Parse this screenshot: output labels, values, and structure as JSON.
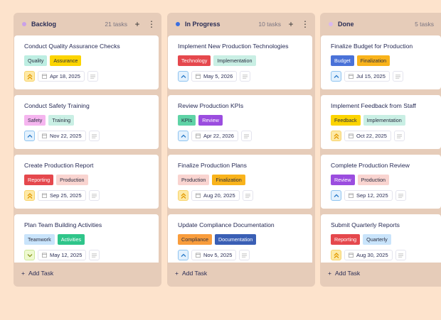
{
  "priorities": {
    "high": {
      "icon": "double-chevron-up-icon",
      "glyph": "⌃",
      "bg": "#fde9a6",
      "border": "#f8d36a",
      "color": "#e39a00"
    },
    "medium": {
      "icon": "chevron-up-icon",
      "glyph": "⌃",
      "bg": "#e3f1fd",
      "border": "#8fc4f0",
      "color": "#2a7ac8"
    },
    "low": {
      "icon": "chevron-down-icon",
      "glyph": "⌄",
      "bg": "#eef9cf",
      "border": "#cde89a",
      "color": "#8a9a20"
    }
  },
  "add_task_label": "Add Task",
  "columns": [
    {
      "title": "Backlog",
      "count": "21 tasks",
      "dot": "#c9a0e8",
      "cards": [
        {
          "title": "Conduct Quality Assurance Checks",
          "tags": [
            {
              "label": "Quality",
              "bg": "#bdeee2",
              "fg": "#2a2d40"
            },
            {
              "label": "Assurance",
              "bg": "#fcd400",
              "fg": "#2a2d40"
            }
          ],
          "priority": "high",
          "date": "Apr 18, 2025"
        },
        {
          "title": "Conduct Safety Training",
          "tags": [
            {
              "label": "Safety",
              "bg": "#f5b5ef",
              "fg": "#2a2d40"
            },
            {
              "label": "Training",
              "bg": "#c9efe4",
              "fg": "#2a2d40"
            }
          ],
          "priority": "medium",
          "date": "Nov 22, 2025"
        },
        {
          "title": "Create Production Report",
          "tags": [
            {
              "label": "Reporting",
              "bg": "#e5484d",
              "fg": "#fff"
            },
            {
              "label": "Production",
              "bg": "#f9d4d0",
              "fg": "#2a2d40"
            }
          ],
          "priority": "high",
          "date": "Sep 25, 2025"
        },
        {
          "title": "Plan Team Building Activities",
          "tags": [
            {
              "label": "Teamwork",
              "bg": "#c9e4fb",
              "fg": "#2a2d40"
            },
            {
              "label": "Activities",
              "bg": "#2fc58a",
              "fg": "#fff"
            }
          ],
          "priority": "low",
          "date": "May 12, 2025"
        }
      ]
    },
    {
      "title": "In Progress",
      "count": "10 tasks",
      "dot": "#3b6fe0",
      "cards": [
        {
          "title": "Implement New Production Technologies",
          "tags": [
            {
              "label": "Technology",
              "bg": "#e5484d",
              "fg": "#fff"
            },
            {
              "label": "Implementation",
              "bg": "#c9efe4",
              "fg": "#2a2d40"
            }
          ],
          "priority": "medium",
          "date": "May 5, 2026"
        },
        {
          "title": "Review Production KPIs",
          "tags": [
            {
              "label": "KPIs",
              "bg": "#5fd3a6",
              "fg": "#2a2d40"
            },
            {
              "label": "Review",
              "bg": "#9b4ddf",
              "fg": "#fff"
            }
          ],
          "priority": "medium",
          "date": "Apr 22, 2026"
        },
        {
          "title": "Finalize Production Plans",
          "tags": [
            {
              "label": "Production",
              "bg": "#f9d4d0",
              "fg": "#2a2d40"
            },
            {
              "label": "Finalization",
              "bg": "#f9b31b",
              "fg": "#2a2d40"
            }
          ],
          "priority": "high",
          "date": "Aug 20, 2025"
        },
        {
          "title": "Update Compliance Documentation",
          "tags": [
            {
              "label": "Compliance",
              "bg": "#f99d3c",
              "fg": "#2a2d40"
            },
            {
              "label": "Documentation",
              "bg": "#3a5fb5",
              "fg": "#fff"
            }
          ],
          "priority": "medium",
          "date": "Nov 5, 2025"
        }
      ]
    },
    {
      "title": "Done",
      "count": "5 tasks",
      "dot": "#d9b8ee",
      "cards": [
        {
          "title": "Finalize Budget for Production",
          "tags": [
            {
              "label": "Budget",
              "bg": "#4a72d8",
              "fg": "#fff"
            },
            {
              "label": "Finalization",
              "bg": "#f9b31b",
              "fg": "#2a2d40"
            }
          ],
          "priority": "medium",
          "date": "Jul 15, 2025"
        },
        {
          "title": "Implement Feedback from Staff",
          "tags": [
            {
              "label": "Feedback",
              "bg": "#fcd400",
              "fg": "#2a2d40"
            },
            {
              "label": "Implementation",
              "bg": "#c9efe4",
              "fg": "#2a2d40"
            }
          ],
          "priority": "high",
          "date": "Oct 22, 2025"
        },
        {
          "title": "Complete Production Review",
          "tags": [
            {
              "label": "Review",
              "bg": "#9b4ddf",
              "fg": "#fff"
            },
            {
              "label": "Production",
              "bg": "#f9d4d0",
              "fg": "#2a2d40"
            }
          ],
          "priority": "medium",
          "date": "Sep 12, 2025"
        },
        {
          "title": "Submit Quarterly Reports",
          "tags": [
            {
              "label": "Reporting",
              "bg": "#e5484d",
              "fg": "#fff"
            },
            {
              "label": "Quarterly",
              "bg": "#c9e4fb",
              "fg": "#2a2d40"
            }
          ],
          "priority": "high",
          "date": "Aug 30, 2025"
        }
      ]
    }
  ]
}
